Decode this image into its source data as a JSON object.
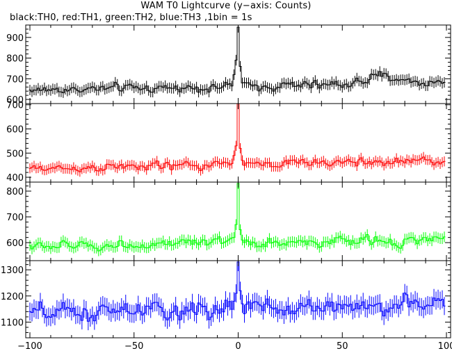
{
  "title": "WAM T0 Lightcurve (y−axis: Counts)",
  "subtitle": "black:TH0, red:TH1, green:TH2, blue:TH3 ,1bin = 1s",
  "chart_data": {
    "type": "line",
    "style": "histogram-step with error bars",
    "xlim": [
      -102,
      102
    ],
    "xticks": [
      -100,
      -50,
      0,
      50,
      100
    ],
    "xtick_labels": [
      "−100",
      "−50",
      "0",
      "50",
      "100"
    ],
    "bin_seconds": 1,
    "panels": [
      {
        "name": "TH0",
        "color": "#000000",
        "ylim": [
          580,
          960
        ],
        "yticks": [
          600,
          700,
          800,
          900
        ],
        "baseline_start": 645,
        "baseline_end": 680,
        "noise": 25,
        "error": 22,
        "features": [
          {
            "x": 70,
            "amplitude": 35,
            "width": 12
          }
        ],
        "peak": {
          "x": 0,
          "values": [
            [
              -2,
              720
            ],
            [
              -1,
              790
            ],
            [
              0,
              950
            ],
            [
              1,
              760
            ],
            [
              2,
              680
            ]
          ]
        }
      },
      {
        "name": "TH1",
        "color": "#ff0000",
        "ylim": [
          380,
          705
        ],
        "yticks": [
          400,
          500,
          600,
          700
        ],
        "baseline_start": 435,
        "baseline_end": 470,
        "noise": 20,
        "error": 18,
        "features": [],
        "peak": {
          "x": 0,
          "values": [
            [
              -2,
              490
            ],
            [
              -1,
              530
            ],
            [
              0,
              710
            ],
            [
              1,
              520
            ],
            [
              2,
              470
            ]
          ]
        }
      },
      {
        "name": "TH2",
        "color": "#00ff00",
        "ylim": [
          530,
          835
        ],
        "yticks": [
          600,
          700,
          800
        ],
        "baseline_start": 585,
        "baseline_end": 610,
        "noise": 22,
        "error": 18,
        "features": [],
        "peak": {
          "x": 0,
          "values": [
            [
              -2,
              620
            ],
            [
              -1,
              670
            ],
            [
              0,
              830
            ],
            [
              1,
              650
            ],
            [
              2,
              610
            ]
          ]
        }
      },
      {
        "name": "TH3",
        "color": "#0000ff",
        "ylim": [
          1040,
          1335
        ],
        "yticks": [
          1100,
          1200,
          1300
        ],
        "baseline_start": 1130,
        "baseline_end": 1170,
        "noise": 40,
        "error": 30,
        "features": [],
        "peak": {
          "x": 0,
          "values": [
            [
              -2,
              1180
            ],
            [
              -1,
              1210
            ],
            [
              0,
              1330
            ],
            [
              1,
              1220
            ],
            [
              2,
              1170
            ]
          ]
        }
      }
    ]
  }
}
